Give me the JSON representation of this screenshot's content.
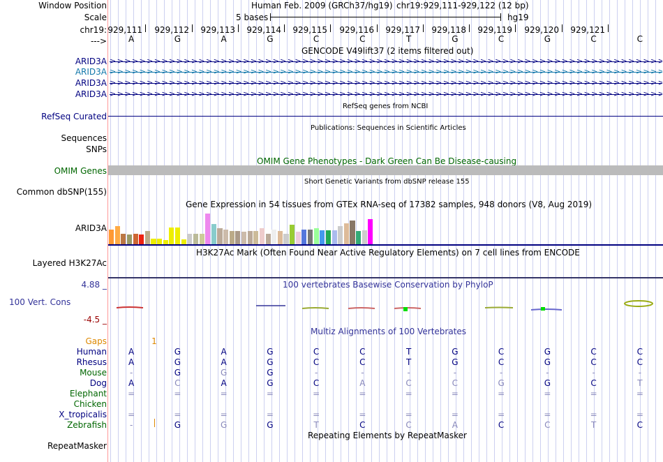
{
  "labels": {
    "window_position": "Window Position",
    "scale": "Scale",
    "chr": "chr19:",
    "arrow": "--->",
    "gencode_items": [
      "ARID3A",
      "ARID3A",
      "ARID3A",
      "ARID3A"
    ],
    "refseq": "RefSeq Curated",
    "sequences": "Sequences",
    "snps": "SNPs",
    "omim": "OMIM Genes",
    "dbsnp": "Common dbSNP(155)",
    "gtex": "ARID3A",
    "h3k27ac": "Layered H3K27Ac",
    "cons_max": "4.88 _",
    "cons": "100 Vert. Cons",
    "cons_min": "-4.5 _",
    "gaps": "Gaps",
    "repeatmasker": "RepeatMasker"
  },
  "header": {
    "assembly": "Human Feb. 2009 (GRCh37/hg19)",
    "position": "chr19:929,111-929,122 (12 bp)",
    "scale_text": "5 bases",
    "scale_db": "hg19"
  },
  "ruler": {
    "positions": [
      "929,111",
      "929,112",
      "929,113",
      "929,114",
      "929,115",
      "929,116",
      "929,117",
      "929,118",
      "929,119",
      "929,120",
      "929,121"
    ],
    "bases": [
      "A",
      "G",
      "A",
      "G",
      "C",
      "C",
      "T",
      "G",
      "C",
      "G",
      "C",
      "C"
    ]
  },
  "tracks": {
    "gencode_title": "GENCODE V49lift37 (2 items filtered out)",
    "refseq_title": "RefSeq genes from NCBI",
    "pubs_title": "Publications: Sequences in Scientific Articles",
    "omim_title": "OMIM Gene Phenotypes - Dark Green Can Be Disease-causing",
    "dbsnp_title": "Short Genetic Variants from dbSNP release 155",
    "gtex_title": "Gene Expression in 54 tissues from GTEx RNA-seq of 17382 samples, 948 donors (V8, Aug 2019)",
    "h3k27ac_title": "H3K27Ac Mark (Often Found Near Active Regulatory Elements) on 7 cell lines from ENCODE",
    "cons_title": "100 vertebrates Basewise Conservation by PhyloP",
    "multiz_title": "Multiz Alignments of 100 Vertebrates",
    "repeat_title": "Repeating Elements by RepeatMasker"
  },
  "gaps_value": "1",
  "gtex_bars": [
    {
      "c": "#FF9933",
      "v": 0.42
    },
    {
      "c": "#FFAA44",
      "v": 0.52
    },
    {
      "c": "#BB7744",
      "v": 0.3
    },
    {
      "c": "#999966",
      "v": 0.28
    },
    {
      "c": "#CC6633",
      "v": 0.3
    },
    {
      "c": "#EE2211",
      "v": 0.28
    },
    {
      "c": "#BBAA88",
      "v": 0.38
    },
    {
      "c": "#EEEE00",
      "v": 0.15
    },
    {
      "c": "#EEEE00",
      "v": 0.15
    },
    {
      "c": "#EEEE00",
      "v": 0.12
    },
    {
      "c": "#EEEE00",
      "v": 0.48
    },
    {
      "c": "#EEEE00",
      "v": 0.48
    },
    {
      "c": "#EEEE00",
      "v": 0.13
    },
    {
      "c": "#CCCCCC",
      "v": 0.3
    },
    {
      "c": "#BBBB99",
      "v": 0.3
    },
    {
      "c": "#CCCC99",
      "v": 0.3
    },
    {
      "c": "#EE88EE",
      "v": 0.88
    },
    {
      "c": "#88CCCC",
      "v": 0.58
    },
    {
      "c": "#BBAA99",
      "v": 0.45
    },
    {
      "c": "#CCBBAA",
      "v": 0.42
    },
    {
      "c": "#BBAA88",
      "v": 0.38
    },
    {
      "c": "#AA9988",
      "v": 0.38
    },
    {
      "c": "#CCBBAA",
      "v": 0.35
    },
    {
      "c": "#BBAA99",
      "v": 0.38
    },
    {
      "c": "#CCBB99",
      "v": 0.38
    },
    {
      "c": "#EECCCC",
      "v": 0.45
    },
    {
      "c": "#BBAA99",
      "v": 0.3
    },
    {
      "c": "#EEEEEE",
      "v": 0.42
    },
    {
      "c": "#DDBB99",
      "v": 0.38
    },
    {
      "c": "#CCCCCC",
      "v": 0.3
    },
    {
      "c": "#99CC33",
      "v": 0.55
    },
    {
      "c": "#EECCDD",
      "v": 0.35
    },
    {
      "c": "#5577DD",
      "v": 0.42
    },
    {
      "c": "#777777",
      "v": 0.42
    },
    {
      "c": "#99FF99",
      "v": 0.45
    },
    {
      "c": "#4499EE",
      "v": 0.4
    },
    {
      "c": "#22AA55",
      "v": 0.4
    },
    {
      "c": "#AABBEE",
      "v": 0.4
    },
    {
      "c": "#CCCCCC",
      "v": 0.52
    },
    {
      "c": "#DDBB99",
      "v": 0.6
    },
    {
      "c": "#887766",
      "v": 0.68
    },
    {
      "c": "#33AA77",
      "v": 0.38
    },
    {
      "c": "#CCCCCC",
      "v": 0.4
    },
    {
      "c": "#FF00FF",
      "v": 0.72
    }
  ],
  "multiz": {
    "species": [
      "Human",
      "Rhesus",
      "Mouse",
      "Dog",
      "Elephant",
      "Chicken",
      "X_tropicalis",
      "Zebrafish"
    ],
    "species_colors": [
      "#000080",
      "#000080",
      "#006600",
      "#000080",
      "#006600",
      "#006600",
      "#000080",
      "#006600"
    ],
    "rows": [
      [
        "A",
        "G",
        "A",
        "G",
        "C",
        "C",
        "T",
        "G",
        "C",
        "G",
        "C",
        "C"
      ],
      [
        "A",
        "G",
        "A",
        "G",
        "C",
        "C",
        "T",
        "G",
        "C",
        "G",
        "C",
        "C"
      ],
      [
        "-",
        "G",
        "G",
        "G",
        "-",
        "-",
        "-",
        "-",
        "-",
        "-",
        "-",
        "-"
      ],
      [
        "A",
        "C",
        "A",
        "G",
        "C",
        "A",
        "C",
        "C",
        "G",
        "G",
        "C",
        "T"
      ],
      [
        "=",
        "=",
        "=",
        "=",
        "=",
        "=",
        "=",
        "=",
        "=",
        "=",
        "=",
        "="
      ],
      [
        "",
        "",
        "",
        "",
        "",
        "",
        "",
        "",
        "",
        "",
        "",
        ""
      ],
      [
        "=",
        "=",
        "=",
        "=",
        "=",
        "=",
        "=",
        "=",
        "=",
        "=",
        "=",
        "="
      ],
      [
        "-",
        "G",
        "G",
        "G",
        "T",
        "C",
        "C",
        "A",
        "C",
        "C",
        "T",
        "C"
      ]
    ],
    "faded": [
      [
        0,
        0,
        0,
        0,
        0,
        0,
        0,
        0,
        0,
        0,
        0,
        0
      ],
      [
        0,
        0,
        0,
        0,
        0,
        0,
        0,
        0,
        0,
        0,
        0,
        0
      ],
      [
        1,
        0,
        1,
        0,
        1,
        1,
        1,
        1,
        1,
        1,
        1,
        1
      ],
      [
        0,
        1,
        0,
        0,
        0,
        1,
        1,
        1,
        1,
        0,
        0,
        1
      ],
      [
        1,
        1,
        1,
        1,
        1,
        1,
        1,
        1,
        1,
        1,
        1,
        1
      ],
      [
        0,
        0,
        0,
        0,
        0,
        0,
        0,
        0,
        0,
        0,
        0,
        0
      ],
      [
        1,
        1,
        1,
        1,
        1,
        1,
        1,
        1,
        1,
        1,
        1,
        1
      ],
      [
        1,
        0,
        1,
        0,
        1,
        0,
        1,
        1,
        0,
        1,
        1,
        0
      ]
    ]
  },
  "colors": {
    "label_blue": "#000080",
    "label_green": "#006600",
    "gencode_highlight": "#1177AA",
    "gap_orange": "#DD8800",
    "cons_blue": "#333399",
    "cons_red": "#990000",
    "omim_grey": "#BBBBBB"
  }
}
